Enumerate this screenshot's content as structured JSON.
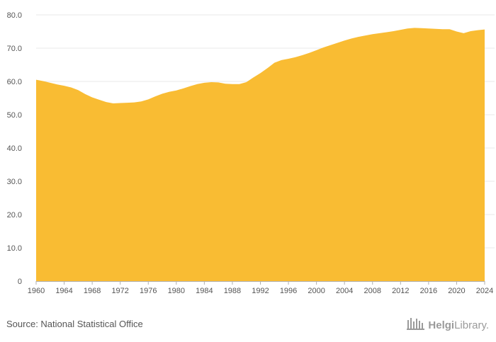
{
  "chart_data": {
    "type": "area",
    "title": "",
    "xlabel": "",
    "ylabel": "",
    "color": "#F9BC33",
    "x": [
      1960,
      1961,
      1962,
      1963,
      1964,
      1965,
      1966,
      1967,
      1968,
      1969,
      1970,
      1971,
      1972,
      1973,
      1974,
      1975,
      1976,
      1977,
      1978,
      1979,
      1980,
      1981,
      1982,
      1983,
      1984,
      1985,
      1986,
      1987,
      1988,
      1989,
      1990,
      1991,
      1992,
      1993,
      1994,
      1995,
      1996,
      1997,
      1998,
      1999,
      2000,
      2001,
      2002,
      2003,
      2004,
      2005,
      2006,
      2007,
      2008,
      2009,
      2010,
      2011,
      2012,
      2013,
      2014,
      2015,
      2016,
      2017,
      2018,
      2019,
      2020,
      2021,
      2022,
      2023,
      2024
    ],
    "values": [
      60.5,
      60.1,
      59.6,
      59.1,
      58.7,
      58.2,
      57.4,
      56.2,
      55.2,
      54.5,
      53.8,
      53.4,
      53.5,
      53.6,
      53.7,
      54.0,
      54.6,
      55.5,
      56.3,
      56.9,
      57.3,
      57.9,
      58.6,
      59.2,
      59.6,
      59.8,
      59.7,
      59.3,
      59.2,
      59.2,
      59.8,
      61.2,
      62.5,
      64.0,
      65.6,
      66.4,
      66.8,
      67.3,
      67.9,
      68.6,
      69.4,
      70.2,
      70.9,
      71.6,
      72.3,
      72.9,
      73.4,
      73.8,
      74.2,
      74.5,
      74.8,
      75.1,
      75.5,
      75.9,
      76.1,
      76.0,
      75.9,
      75.8,
      75.7,
      75.7,
      75.0,
      74.5,
      75.1,
      75.4,
      75.6
    ],
    "ylim": [
      0,
      80
    ],
    "yticks": [
      0,
      10,
      20,
      30,
      40,
      50,
      60,
      70,
      80
    ],
    "ytick_labels": [
      "0",
      "10.0",
      "20.0",
      "30.0",
      "40.0",
      "50.0",
      "60.0",
      "70.0",
      "80.0"
    ],
    "xticks": [
      1960,
      1964,
      1968,
      1972,
      1976,
      1980,
      1984,
      1988,
      1992,
      1996,
      2000,
      2004,
      2008,
      2012,
      2016,
      2020,
      2024
    ],
    "xtick_labels": [
      "1960",
      "1964",
      "1968",
      "1972",
      "1976",
      "1980",
      "1984",
      "1988",
      "1992",
      "1996",
      "2000",
      "2004",
      "2008",
      "2012",
      "2016",
      "2020",
      "2024"
    ],
    "grid": true
  },
  "footer": {
    "source": "Source: National Statistical Office",
    "brand_part1": "Helgi",
    "brand_part2": "Library."
  },
  "colors": {
    "area": "#F9BC33",
    "grid": "#e8e8e8",
    "axis": "#b0b0b0",
    "text": "#555555",
    "brand": "#9a9a9a"
  }
}
